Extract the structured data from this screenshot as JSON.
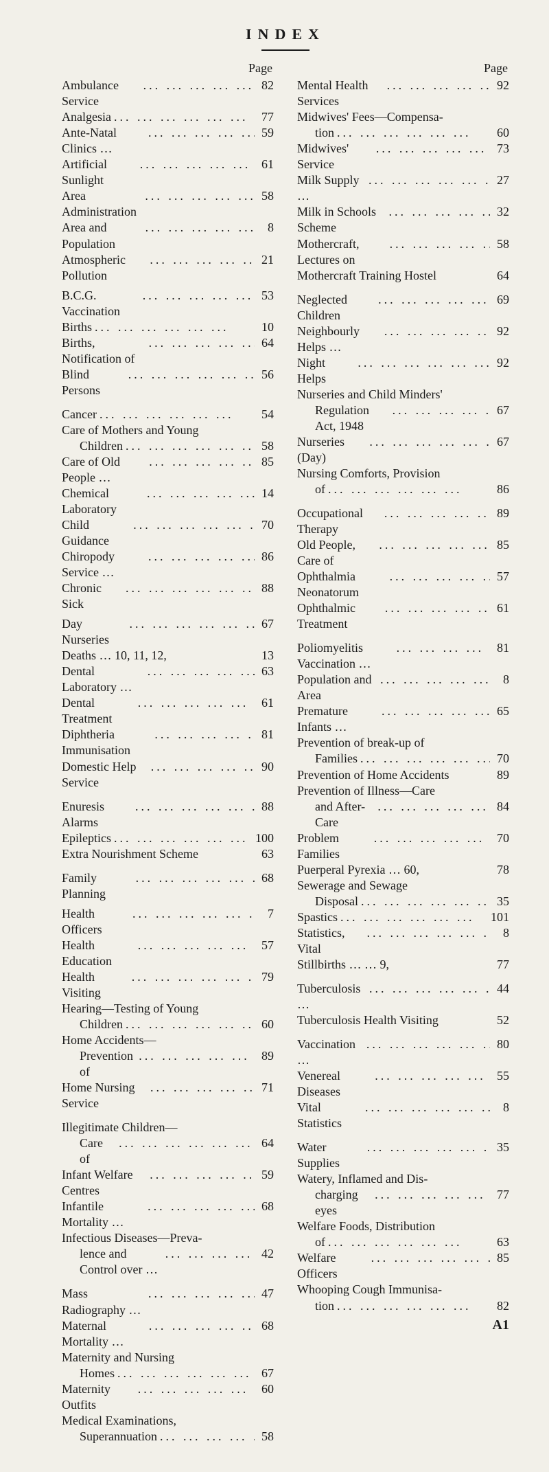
{
  "title": "INDEX",
  "page_header": "Page",
  "footer_mark": "A1",
  "dots_fill": "...   ...   ...   ...   ...   ...",
  "left": [
    {
      "t": "entry",
      "label": "Ambulance Service",
      "page": "82"
    },
    {
      "t": "entry",
      "label": "Analgesia",
      "page": "77"
    },
    {
      "t": "entry",
      "label": "Ante-Natal Clinics …",
      "page": "59"
    },
    {
      "t": "entry",
      "label": "Artificial Sunlight",
      "page": "61"
    },
    {
      "t": "entry",
      "label": "Area Administration",
      "page": "58"
    },
    {
      "t": "entry",
      "label": "Area and Population",
      "page": "8"
    },
    {
      "t": "entry",
      "label": "Atmospheric Pollution",
      "page": "21"
    },
    {
      "t": "gap",
      "size": "s"
    },
    {
      "t": "entry",
      "label": "B.C.G. Vaccination",
      "page": "53"
    },
    {
      "t": "entry",
      "label": "Births",
      "page": "10"
    },
    {
      "t": "entry",
      "label": "Births, Notification of",
      "page": "64"
    },
    {
      "t": "entry",
      "label": "Blind Persons",
      "page": "56"
    },
    {
      "t": "gap",
      "size": "m"
    },
    {
      "t": "entry",
      "label": "Cancer",
      "page": "54"
    },
    {
      "t": "heading",
      "label": "Care of Mothers and Young"
    },
    {
      "t": "entry",
      "indent": true,
      "label": "Children",
      "page": "58"
    },
    {
      "t": "entry",
      "label": "Care of Old People …",
      "page": "85"
    },
    {
      "t": "entry",
      "label": "Chemical Laboratory",
      "page": "14"
    },
    {
      "t": "entry",
      "label": "Child Guidance",
      "page": "70"
    },
    {
      "t": "entry",
      "label": "Chiropody Service …",
      "page": "86"
    },
    {
      "t": "entry",
      "label": "Chronic Sick",
      "page": "88"
    },
    {
      "t": "gap",
      "size": "s"
    },
    {
      "t": "entry",
      "label": "Day Nurseries",
      "page": "67"
    },
    {
      "t": "entry",
      "label": "Deaths     …     10, 11, 12,",
      "page": "13",
      "nodots": true
    },
    {
      "t": "entry",
      "label": "Dental Laboratory …",
      "page": "63"
    },
    {
      "t": "entry",
      "label": "Dental Treatment",
      "page": "61"
    },
    {
      "t": "entry",
      "label": "Diphtheria Immunisation",
      "page": "81"
    },
    {
      "t": "entry",
      "label": "Domestic Help Service",
      "page": "90"
    },
    {
      "t": "gap",
      "size": "m"
    },
    {
      "t": "entry",
      "label": "Enuresis Alarms",
      "page": "88"
    },
    {
      "t": "entry",
      "label": "Epileptics",
      "page": "100"
    },
    {
      "t": "entry",
      "label": "Extra Nourishment Scheme",
      "page": "63",
      "nodots": true
    },
    {
      "t": "gap",
      "size": "m"
    },
    {
      "t": "entry",
      "label": "Family Planning",
      "page": "68"
    },
    {
      "t": "gap",
      "size": "s"
    },
    {
      "t": "entry",
      "label": "Health Officers",
      "page": "7"
    },
    {
      "t": "entry",
      "label": "Health Education",
      "page": "57"
    },
    {
      "t": "entry",
      "label": "Health Visiting",
      "page": "79"
    },
    {
      "t": "heading",
      "label": "Hearing—Testing of Young"
    },
    {
      "t": "entry",
      "indent": true,
      "label": "Children",
      "page": "60"
    },
    {
      "t": "heading",
      "label": "Home Accidents—"
    },
    {
      "t": "entry",
      "indent": true,
      "label": "Prevention of",
      "page": "89"
    },
    {
      "t": "entry",
      "label": "Home Nursing Service",
      "page": "71"
    },
    {
      "t": "gap",
      "size": "m"
    },
    {
      "t": "heading",
      "label": "Illegitimate Children—"
    },
    {
      "t": "entry",
      "indent": true,
      "label": "Care of",
      "page": "64"
    },
    {
      "t": "entry",
      "label": "Infant Welfare Centres",
      "page": "59"
    },
    {
      "t": "entry",
      "label": "Infantile Mortality …",
      "page": "68"
    },
    {
      "t": "heading",
      "label": "Infectious Diseases—Preva-"
    },
    {
      "t": "entry",
      "indent": true,
      "label": "lence and Control over …",
      "page": "42"
    },
    {
      "t": "gap",
      "size": "m"
    },
    {
      "t": "entry",
      "label": "Mass Radiography …",
      "page": "47"
    },
    {
      "t": "entry",
      "label": "Maternal Mortality …",
      "page": "68"
    },
    {
      "t": "heading",
      "label": "Maternity and Nursing"
    },
    {
      "t": "entry",
      "indent": true,
      "label": "Homes",
      "page": "67"
    },
    {
      "t": "entry",
      "label": "Maternity Outfits",
      "page": "60"
    },
    {
      "t": "heading",
      "label": "Medical Examinations,"
    },
    {
      "t": "entry",
      "indent": true,
      "label": "Superannuation",
      "page": "58"
    }
  ],
  "right": [
    {
      "t": "entry",
      "label": "Mental Health Services",
      "page": "92"
    },
    {
      "t": "heading",
      "label": "Midwives' Fees—Compensa-"
    },
    {
      "t": "entry",
      "indent": true,
      "label": "tion",
      "page": "60"
    },
    {
      "t": "entry",
      "label": "Midwives' Service",
      "page": "73"
    },
    {
      "t": "entry",
      "label": "Milk Supply …",
      "page": "27"
    },
    {
      "t": "entry",
      "label": "Milk in Schools Scheme",
      "page": "32"
    },
    {
      "t": "entry",
      "label": "Mothercraft, Lectures on",
      "page": "58"
    },
    {
      "t": "entry",
      "label": "Mothercraft Training Hostel",
      "page": "64",
      "nodots": true
    },
    {
      "t": "gap",
      "size": "m"
    },
    {
      "t": "entry",
      "label": "Neglected Children",
      "page": "69"
    },
    {
      "t": "entry",
      "label": "Neighbourly Helps …",
      "page": "92"
    },
    {
      "t": "entry",
      "label": "Night Helps",
      "page": "92"
    },
    {
      "t": "heading",
      "label": "Nurseries and Child Minders'"
    },
    {
      "t": "entry",
      "indent": true,
      "label": "Regulation Act, 1948",
      "page": "67"
    },
    {
      "t": "entry",
      "label": "Nurseries (Day)",
      "page": "67"
    },
    {
      "t": "heading",
      "label": "Nursing Comforts, Provision"
    },
    {
      "t": "entry",
      "indent": true,
      "label": "of",
      "page": "86"
    },
    {
      "t": "gap",
      "size": "m"
    },
    {
      "t": "entry",
      "label": "Occupational Therapy",
      "page": "89"
    },
    {
      "t": "entry",
      "label": "Old People, Care of",
      "page": "85"
    },
    {
      "t": "entry",
      "label": "Ophthalmia Neonatorum",
      "page": "57"
    },
    {
      "t": "entry",
      "label": "Ophthalmic Treatment",
      "page": "61"
    },
    {
      "t": "gap",
      "size": "m"
    },
    {
      "t": "entry",
      "label": "Poliomyelitis Vaccination …",
      "page": "81"
    },
    {
      "t": "entry",
      "label": "Population and Area",
      "page": "8"
    },
    {
      "t": "entry",
      "label": "Premature Infants …",
      "page": "65"
    },
    {
      "t": "heading",
      "label": "Prevention of break-up of"
    },
    {
      "t": "entry",
      "indent": true,
      "label": "Families",
      "page": "70"
    },
    {
      "t": "entry",
      "label": "Prevention of Home Accidents",
      "page": "89",
      "nodots": true
    },
    {
      "t": "heading",
      "label": "Prevention of Illness—Care"
    },
    {
      "t": "entry",
      "indent": true,
      "label": "and After-Care",
      "page": "84"
    },
    {
      "t": "entry",
      "label": "Problem Families",
      "page": "70"
    },
    {
      "t": "entry",
      "label": "Puerperal Pyrexia   …     60,",
      "page": "78",
      "nodots": true
    },
    {
      "t": "heading",
      "label": "Sewerage and Sewage"
    },
    {
      "t": "entry",
      "indent": true,
      "label": "Disposal",
      "page": "35"
    },
    {
      "t": "entry",
      "label": "Spastics",
      "page": "101"
    },
    {
      "t": "entry",
      "label": "Statistics, Vital",
      "page": "8"
    },
    {
      "t": "entry",
      "label": "Stillbirths     …     …        9,",
      "page": "77",
      "nodots": true
    },
    {
      "t": "gap",
      "size": "m"
    },
    {
      "t": "entry",
      "label": "Tuberculosis …",
      "page": "44"
    },
    {
      "t": "entry",
      "label": "Tuberculosis Health Visiting",
      "page": "52",
      "nodots": true
    },
    {
      "t": "gap",
      "size": "m"
    },
    {
      "t": "entry",
      "label": "Vaccination …",
      "page": "80"
    },
    {
      "t": "entry",
      "label": "Venereal Diseases",
      "page": "55"
    },
    {
      "t": "entry",
      "label": "Vital Statistics",
      "page": "8"
    },
    {
      "t": "gap",
      "size": "m"
    },
    {
      "t": "entry",
      "label": "Water Supplies",
      "page": "35"
    },
    {
      "t": "heading",
      "label": "Watery, Inflamed and Dis-"
    },
    {
      "t": "entry",
      "indent": true,
      "label": "charging eyes",
      "page": "77"
    },
    {
      "t": "heading",
      "label": "Welfare Foods, Distribution"
    },
    {
      "t": "entry",
      "indent": true,
      "label": "of",
      "page": "63"
    },
    {
      "t": "entry",
      "label": "Welfare Officers",
      "page": "85"
    },
    {
      "t": "heading",
      "label": "Whooping Cough Immunisa-"
    },
    {
      "t": "entry",
      "indent": true,
      "label": "tion",
      "page": "82"
    }
  ]
}
